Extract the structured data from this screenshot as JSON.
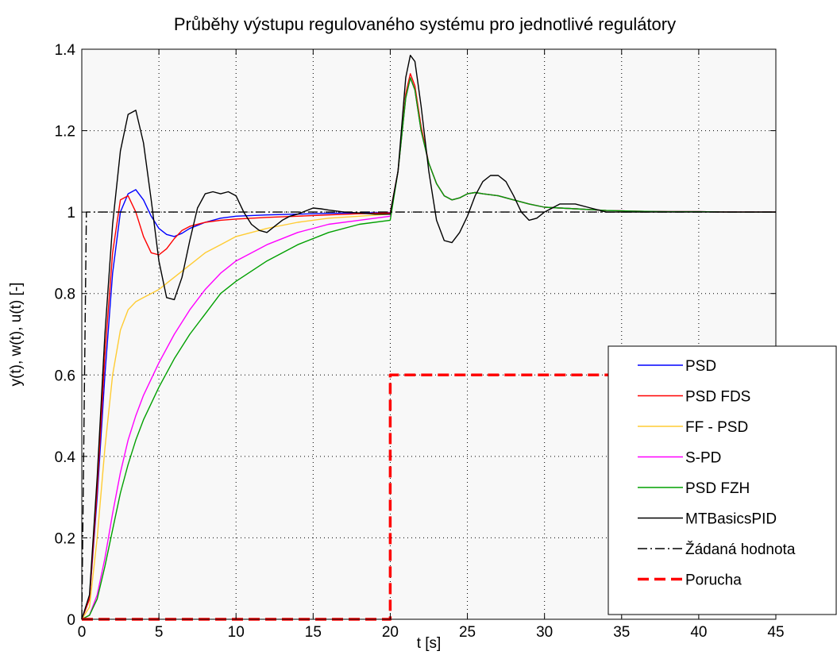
{
  "chart_data": {
    "type": "line",
    "title": "Průběhy výstupu regulovaného systému pro jednotlivé regulátory",
    "xlabel": "t [s]",
    "ylabel": "y(t), w(t), u(t) [-]",
    "xlim": [
      0,
      45
    ],
    "ylim": [
      0,
      1.4
    ],
    "xticks": [
      0,
      5,
      10,
      15,
      20,
      25,
      30,
      35,
      40,
      45
    ],
    "xtick_labels": [
      "0",
      "5",
      "10",
      "15",
      "20",
      "25",
      "30",
      "35",
      "40",
      "45"
    ],
    "yticks": [
      0,
      0.2,
      0.4,
      0.6,
      0.8,
      1,
      1.2,
      1.4
    ],
    "ytick_labels": [
      "0",
      "0.2",
      "0.4",
      "0.6",
      "0.8",
      "1",
      "1.2",
      "1.4"
    ],
    "grid": true,
    "legend_position": "lower-right",
    "series": [
      {
        "name": "PSD",
        "color": "#0000ff",
        "style": "solid",
        "x": [
          0,
          0.5,
          1,
          1.5,
          2,
          2.5,
          3,
          3.5,
          4,
          4.5,
          5,
          5.5,
          6,
          6.5,
          7,
          8,
          9,
          10,
          12,
          14,
          16,
          18,
          20,
          20.5,
          21,
          21.3,
          21.6,
          22,
          22.5,
          23,
          23.5,
          24,
          24.5,
          25,
          25.5,
          26,
          27,
          28,
          29,
          30,
          32,
          34,
          36,
          38,
          40,
          42,
          45
        ],
        "y": [
          0,
          0.05,
          0.3,
          0.6,
          0.85,
          1.0,
          1.045,
          1.055,
          1.03,
          0.99,
          0.96,
          0.945,
          0.94,
          0.948,
          0.96,
          0.975,
          0.985,
          0.99,
          0.993,
          0.995,
          0.997,
          0.998,
          0.999,
          1.1,
          1.28,
          1.33,
          1.3,
          1.2,
          1.12,
          1.07,
          1.04,
          1.03,
          1.035,
          1.045,
          1.048,
          1.045,
          1.04,
          1.03,
          1.02,
          1.012,
          1.008,
          1.004,
          1.002,
          1.001,
          1.001,
          1.0,
          1.0
        ]
      },
      {
        "name": "PSD FDS",
        "color": "#ff0000",
        "style": "solid",
        "x": [
          0,
          0.5,
          1,
          1.5,
          2,
          2.5,
          3,
          3.5,
          4,
          4.5,
          5,
          5.5,
          6,
          6.5,
          7,
          8,
          9,
          10,
          12,
          14,
          16,
          18,
          20,
          20.5,
          21,
          21.3,
          21.6,
          22,
          22.5,
          23,
          23.5,
          24,
          24.5,
          25,
          25.5,
          26,
          27,
          28,
          29,
          30,
          32,
          34,
          36,
          38,
          40,
          42,
          45
        ],
        "y": [
          0,
          0.05,
          0.32,
          0.65,
          0.9,
          1.03,
          1.04,
          1.0,
          0.94,
          0.9,
          0.895,
          0.91,
          0.935,
          0.955,
          0.965,
          0.975,
          0.98,
          0.983,
          0.987,
          0.99,
          0.993,
          0.996,
          0.998,
          1.1,
          1.29,
          1.34,
          1.31,
          1.21,
          1.12,
          1.07,
          1.04,
          1.03,
          1.035,
          1.045,
          1.048,
          1.045,
          1.04,
          1.03,
          1.02,
          1.012,
          1.008,
          1.004,
          1.002,
          1.001,
          1.001,
          1.0,
          1.0
        ]
      },
      {
        "name": "FF - PSD",
        "color": "#ffcc33",
        "style": "solid",
        "x": [
          0,
          0.5,
          1,
          1.5,
          2,
          2.5,
          3,
          3.5,
          4,
          4.5,
          5,
          6,
          7,
          8,
          9,
          10,
          12,
          14,
          16,
          18,
          20,
          20.5,
          21,
          21.3,
          21.6,
          22,
          22.5,
          23,
          23.5,
          24,
          24.5,
          25,
          25.5,
          26,
          27,
          28,
          29,
          30,
          32,
          34,
          36,
          38,
          40,
          42,
          45
        ],
        "y": [
          0,
          0.03,
          0.2,
          0.42,
          0.6,
          0.71,
          0.76,
          0.78,
          0.79,
          0.8,
          0.81,
          0.84,
          0.87,
          0.9,
          0.92,
          0.94,
          0.96,
          0.975,
          0.985,
          0.99,
          0.995,
          1.1,
          1.28,
          1.33,
          1.3,
          1.2,
          1.12,
          1.07,
          1.04,
          1.03,
          1.035,
          1.045,
          1.048,
          1.045,
          1.04,
          1.03,
          1.02,
          1.012,
          1.008,
          1.004,
          1.002,
          1.001,
          1.001,
          1.0,
          1.0
        ]
      },
      {
        "name": "S-PD",
        "color": "#ff00ff",
        "style": "solid",
        "x": [
          0,
          0.5,
          1,
          1.5,
          2,
          2.5,
          3,
          3.5,
          4,
          5,
          6,
          7,
          8,
          9,
          10,
          12,
          14,
          16,
          18,
          20,
          20.5,
          21,
          21.3,
          21.6,
          22,
          22.5,
          23,
          23.5,
          24,
          24.5,
          25,
          25.5,
          26,
          27,
          28,
          29,
          30,
          32,
          34,
          36,
          38,
          40,
          42,
          45
        ],
        "y": [
          0,
          0.01,
          0.06,
          0.15,
          0.26,
          0.36,
          0.44,
          0.5,
          0.55,
          0.63,
          0.7,
          0.76,
          0.81,
          0.85,
          0.88,
          0.92,
          0.95,
          0.97,
          0.98,
          0.99,
          1.1,
          1.28,
          1.33,
          1.3,
          1.2,
          1.12,
          1.07,
          1.04,
          1.03,
          1.035,
          1.045,
          1.048,
          1.045,
          1.04,
          1.03,
          1.02,
          1.012,
          1.008,
          1.004,
          1.002,
          1.001,
          1.001,
          1.0,
          1.0
        ]
      },
      {
        "name": "PSD FZH",
        "color": "#00a000",
        "style": "solid",
        "x": [
          0,
          0.5,
          1,
          1.5,
          2,
          2.5,
          3,
          3.5,
          4,
          5,
          6,
          7,
          8,
          9,
          10,
          12,
          14,
          16,
          18,
          20,
          20.5,
          21,
          21.3,
          21.6,
          22,
          22.5,
          23,
          23.5,
          24,
          24.5,
          25,
          25.5,
          26,
          27,
          28,
          29,
          30,
          32,
          34,
          36,
          38,
          40,
          42,
          45
        ],
        "y": [
          0,
          0.01,
          0.05,
          0.13,
          0.22,
          0.31,
          0.38,
          0.44,
          0.49,
          0.57,
          0.64,
          0.7,
          0.75,
          0.8,
          0.83,
          0.88,
          0.92,
          0.95,
          0.97,
          0.98,
          1.1,
          1.28,
          1.33,
          1.3,
          1.2,
          1.12,
          1.07,
          1.04,
          1.03,
          1.035,
          1.045,
          1.048,
          1.045,
          1.04,
          1.03,
          1.02,
          1.012,
          1.008,
          1.004,
          1.002,
          1.001,
          1.001,
          1.0,
          1.0
        ]
      },
      {
        "name": "MTBasicsPID",
        "color": "#000000",
        "style": "solid",
        "x": [
          0,
          0.5,
          1,
          1.5,
          2,
          2.5,
          3,
          3.5,
          4,
          4.5,
          5,
          5.5,
          6,
          6.5,
          7,
          7.5,
          8,
          8.5,
          9,
          9.5,
          10,
          10.5,
          11,
          11.5,
          12,
          12.5,
          13,
          13.5,
          14,
          15,
          15.5,
          16,
          17,
          18,
          19,
          20,
          20.5,
          21,
          21.3,
          21.6,
          22,
          22.5,
          23,
          23.5,
          24,
          24.5,
          25,
          25.5,
          26,
          26.5,
          27,
          27.5,
          28,
          28.5,
          29,
          29.5,
          30,
          30.5,
          31,
          32,
          33,
          34,
          35,
          36,
          38,
          40,
          45
        ],
        "y": [
          0,
          0.06,
          0.35,
          0.7,
          0.97,
          1.15,
          1.24,
          1.25,
          1.17,
          1.03,
          0.88,
          0.79,
          0.785,
          0.84,
          0.93,
          1.01,
          1.045,
          1.05,
          1.045,
          1.05,
          1.04,
          1.0,
          0.97,
          0.955,
          0.95,
          0.965,
          0.98,
          0.99,
          0.995,
          1.01,
          1.008,
          1.005,
          1.0,
          0.998,
          0.995,
          0.995,
          1.1,
          1.33,
          1.385,
          1.37,
          1.26,
          1.1,
          0.98,
          0.93,
          0.925,
          0.95,
          0.99,
          1.04,
          1.075,
          1.09,
          1.09,
          1.075,
          1.04,
          1.0,
          0.98,
          0.985,
          1.0,
          1.01,
          1.02,
          1.02,
          1.01,
          1.0,
          1.0,
          1.0,
          1.0,
          1.0,
          1.0
        ]
      },
      {
        "name": "Žádaná hodnota",
        "color": "#000000",
        "style": "dashdot",
        "x": [
          0,
          0.3,
          45
        ],
        "y": [
          0,
          1,
          1
        ]
      },
      {
        "name": "Porucha",
        "color": "#ff0000",
        "style": "dashed",
        "x": [
          0,
          20,
          20,
          45
        ],
        "y": [
          0,
          0,
          0.6,
          0.6
        ]
      }
    ]
  }
}
